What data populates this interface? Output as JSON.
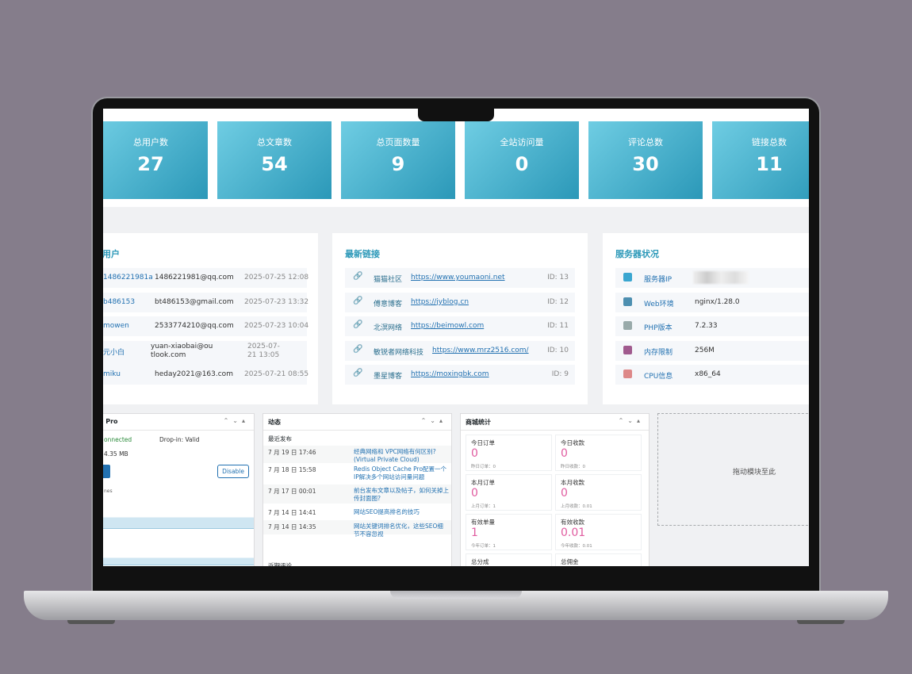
{
  "stats": [
    {
      "label": "总用户数",
      "value": 27
    },
    {
      "label": "总文章数",
      "value": 54
    },
    {
      "label": "总页面数量",
      "value": 9
    },
    {
      "label": "全站访问量",
      "value": 0
    },
    {
      "label": "评论总数",
      "value": 30
    },
    {
      "label": "链接总数",
      "value": 11
    }
  ],
  "users": {
    "title": "册用户",
    "rows": [
      {
        "name": "1486221981a",
        "email": "1486221981@qq.com",
        "date": "2025-07-25 12:08"
      },
      {
        "name": "b486153",
        "email": "bt486153@gmail.com",
        "date": "2025-07-23 13:32"
      },
      {
        "name": "mowen",
        "email": "2533774210@qq.com",
        "date": "2025-07-23 10:04"
      },
      {
        "name": "元小白",
        "email": "yuan-xiaobai@outlook.com",
        "date": "2025-07-21 13:05"
      },
      {
        "name": "miku",
        "email": "heday2021@163.com",
        "date": "2025-07-21 08:55"
      }
    ]
  },
  "links": {
    "title": "最新链接",
    "rows": [
      {
        "name": "猫猫社区",
        "url": "https://www.youmaoni.net",
        "id": "ID: 13"
      },
      {
        "name": "傅意博客",
        "url": "https://jyblog.cn",
        "id": "ID: 12"
      },
      {
        "name": "北溟网络",
        "url": "https://beimowl.com",
        "id": "ID: 11"
      },
      {
        "name": "敏锐者网络科技",
        "url": "https://www.mrz2516.com/",
        "id": "ID: 10"
      },
      {
        "name": "墨星博客",
        "url": "https://moxingbk.com",
        "id": "ID: 9"
      }
    ]
  },
  "server": {
    "title": "服务器状况",
    "rows": [
      {
        "label": "服务器IP"
      },
      {
        "label": "Web环境",
        "value": "nginx/1.28.0"
      },
      {
        "label": "PHP版本",
        "value": "7.2.33"
      },
      {
        "label": "内存限制",
        "value": "256M"
      },
      {
        "label": "CPU信息",
        "value": "x86_64"
      }
    ]
  },
  "cache": {
    "title": "e Pro",
    "status": "onnected",
    "dropin": "Drop-in: Valid",
    "size": "4.35 MB",
    "button": "Disable",
    "label": "nes"
  },
  "activity": {
    "title": "动态",
    "section": "最近发布",
    "posts": [
      {
        "date": "7 月 19 日 17:46",
        "title": "经典网络和 VPC网络有何区别?(Virtual Private Cloud)"
      },
      {
        "date": "7 月 18 日 15:58",
        "title": "Redis Object Cache Pro配置一个IP解决多个网站访问量问题"
      },
      {
        "date": "7 月 17 日 00:01",
        "title": "前台发布文章以及帖子，如何关掉上传封面图?"
      },
      {
        "date": "7 月 14 日 14:41",
        "title": "网站SEO提高排名的技巧"
      },
      {
        "date": "7 月 14 日 14:35",
        "title": "网站关键词排名优化，这些SEO细节不容忽视"
      }
    ],
    "footer": "近期评论"
  },
  "shop": {
    "title": "商城统计",
    "cells": [
      {
        "label": "今日订单",
        "value": 0,
        "sub": "昨日订单：0"
      },
      {
        "label": "今日收款",
        "value": 0,
        "sub": "昨日收款：0"
      },
      {
        "label": "本月订单",
        "value": 0,
        "sub": "上月订单：1"
      },
      {
        "label": "本月收款",
        "value": 0,
        "sub": "上月收款：0.01"
      },
      {
        "label": "有效单量",
        "value": 1,
        "sub": "今年订单：1"
      },
      {
        "label": "有效收款",
        "value": 0.01,
        "sub": "今年收款：0.01"
      },
      {
        "label": "总分成"
      },
      {
        "label": "总佣金"
      }
    ]
  },
  "dropzone": "拖动模块至此"
}
